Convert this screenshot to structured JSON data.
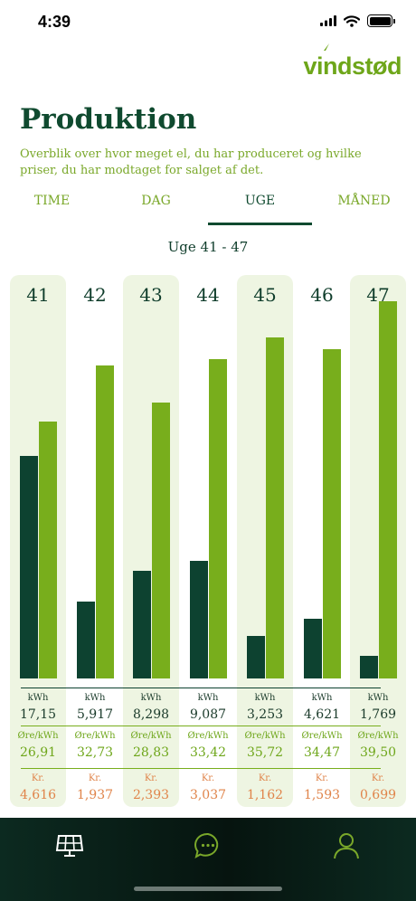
{
  "status_bar": {
    "time": "4:39"
  },
  "brand": {
    "logo_text": "vindstød"
  },
  "header": {
    "title": "Produktion",
    "subtitle": "Overblik over hvor meget el, du har produceret og hvilke priser, du har modtaget for salget af det."
  },
  "tabs": [
    {
      "label": "TIME",
      "active": false
    },
    {
      "label": "DAG",
      "active": false
    },
    {
      "label": "UGE",
      "active": true
    },
    {
      "label": "MÅNED",
      "active": false
    }
  ],
  "week_range": "Uge 41 - 47",
  "labels": {
    "energy_unit": "kWh",
    "price_unit": "Øre/kWh",
    "amount_unit": "Kr."
  },
  "colors": {
    "dark_bar": "#0d4230",
    "light_bar": "#78ae1c",
    "shade": "#eef5e2",
    "orange": "#e0844a",
    "green": "#6ea61a"
  },
  "chart_data": {
    "type": "bar",
    "categories": [
      "41",
      "42",
      "43",
      "44",
      "45",
      "46",
      "47"
    ],
    "series": [
      {
        "values": [
          17.15,
          5.917,
          8.298,
          9.087,
          3.253,
          4.621,
          1.769
        ]
      },
      {
        "values": [
          26.91,
          32.73,
          28.83,
          33.42,
          35.72,
          34.47,
          39.5
        ]
      }
    ]
  },
  "weeks": [
    {
      "week": "41",
      "kwh": "17,15",
      "ore_kwh": "26,91",
      "kr": "4,616"
    },
    {
      "week": "42",
      "kwh": "5,917",
      "ore_kwh": "32,73",
      "kr": "1,937"
    },
    {
      "week": "43",
      "kwh": "8,298",
      "ore_kwh": "28,83",
      "kr": "2,393"
    },
    {
      "week": "44",
      "kwh": "9,087",
      "ore_kwh": "33,42",
      "kr": "3,037"
    },
    {
      "week": "45",
      "kwh": "3,253",
      "ore_kwh": "35,72",
      "kr": "1,162"
    },
    {
      "week": "46",
      "kwh": "4,621",
      "ore_kwh": "34,47",
      "kr": "1,593"
    },
    {
      "week": "47",
      "kwh": "1,769",
      "ore_kwh": "39,50",
      "kr": "0,699"
    }
  ],
  "bottom_nav": [
    {
      "icon": "solar-panel-icon"
    },
    {
      "icon": "chat-icon"
    },
    {
      "icon": "user-icon"
    }
  ]
}
